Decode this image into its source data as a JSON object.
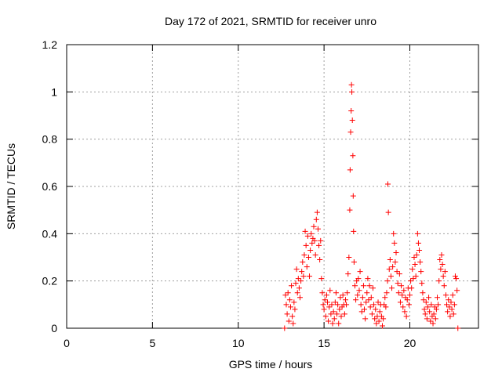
{
  "chart_data": {
    "type": "scatter",
    "title": "Day 172 of 2021, SRMTID for receiver unro",
    "xlabel": "GPS time / hours",
    "ylabel": "SRMTID / TECUs",
    "xlim": [
      0,
      24
    ],
    "ylim": [
      0,
      1.2
    ],
    "xticks": [
      0,
      5,
      10,
      15,
      20
    ],
    "xtick_labels": [
      "0",
      "5",
      "10",
      "15",
      "20"
    ],
    "yticks": [
      0,
      0.2,
      0.4,
      0.6,
      0.8,
      1,
      1.2
    ],
    "ytick_labels": [
      "0",
      "0.2",
      "0.4",
      "0.6",
      "0.8",
      "1",
      "1.2"
    ],
    "grid": true,
    "marker": "+",
    "series_color": "#ff0000",
    "series": [
      {
        "name": "SRMTID",
        "points": [
          [
            12.7,
            0.0
          ],
          [
            12.75,
            0.14
          ],
          [
            12.8,
            0.1
          ],
          [
            12.85,
            0.06
          ],
          [
            12.9,
            0.15
          ],
          [
            12.95,
            0.03
          ],
          [
            13.0,
            0.12
          ],
          [
            13.05,
            0.09
          ],
          [
            13.1,
            0.18
          ],
          [
            13.15,
            0.05
          ],
          [
            13.2,
            0.02
          ],
          [
            13.25,
            0.11
          ],
          [
            13.3,
            0.08
          ],
          [
            13.35,
            0.19
          ],
          [
            13.4,
            0.25
          ],
          [
            13.45,
            0.15
          ],
          [
            13.5,
            0.21
          ],
          [
            13.55,
            0.17
          ],
          [
            13.6,
            0.13
          ],
          [
            13.65,
            0.2
          ],
          [
            13.7,
            0.24
          ],
          [
            13.75,
            0.28
          ],
          [
            13.8,
            0.22
          ],
          [
            13.85,
            0.31
          ],
          [
            13.9,
            0.41
          ],
          [
            13.95,
            0.35
          ],
          [
            14.0,
            0.26
          ],
          [
            14.05,
            0.39
          ],
          [
            14.1,
            0.3
          ],
          [
            14.15,
            0.22
          ],
          [
            14.2,
            0.33
          ],
          [
            14.25,
            0.4
          ],
          [
            14.3,
            0.36
          ],
          [
            14.35,
            0.38
          ],
          [
            14.4,
            0.43
          ],
          [
            14.45,
            0.37
          ],
          [
            14.5,
            0.31
          ],
          [
            14.55,
            0.46
          ],
          [
            14.6,
            0.49
          ],
          [
            14.65,
            0.42
          ],
          [
            14.7,
            0.35
          ],
          [
            14.75,
            0.29
          ],
          [
            14.8,
            0.37
          ],
          [
            14.85,
            0.21
          ],
          [
            14.9,
            0.15
          ],
          [
            14.95,
            0.1
          ],
          [
            15.0,
            0.08
          ],
          [
            15.05,
            0.12
          ],
          [
            15.1,
            0.05
          ],
          [
            15.15,
            0.14
          ],
          [
            15.2,
            0.11
          ],
          [
            15.25,
            0.03
          ],
          [
            15.3,
            0.09
          ],
          [
            15.35,
            0.16
          ],
          [
            15.4,
            0.06
          ],
          [
            15.45,
            0.1
          ],
          [
            15.5,
            0.02
          ],
          [
            15.55,
            0.07
          ],
          [
            15.6,
            0.04
          ],
          [
            15.65,
            0.11
          ],
          [
            15.7,
            0.15
          ],
          [
            15.75,
            0.06
          ],
          [
            15.8,
            0.1
          ],
          [
            15.85,
            0.02
          ],
          [
            15.9,
            0.08
          ],
          [
            15.95,
            0.13
          ],
          [
            16.0,
            0.05
          ],
          [
            16.05,
            0.09
          ],
          [
            16.1,
            0.14
          ],
          [
            16.15,
            0.1
          ],
          [
            16.2,
            0.06
          ],
          [
            16.25,
            0.12
          ],
          [
            16.3,
            0.1
          ],
          [
            16.35,
            0.15
          ],
          [
            16.4,
            0.23
          ],
          [
            16.45,
            0.3
          ],
          [
            16.5,
            0.5
          ],
          [
            16.52,
            0.67
          ],
          [
            16.55,
            0.83
          ],
          [
            16.58,
            0.92
          ],
          [
            16.6,
            1.03
          ],
          [
            16.62,
            1.0
          ],
          [
            16.65,
            0.88
          ],
          [
            16.68,
            0.73
          ],
          [
            16.7,
            0.56
          ],
          [
            16.72,
            0.41
          ],
          [
            16.75,
            0.28
          ],
          [
            16.8,
            0.18
          ],
          [
            16.85,
            0.12
          ],
          [
            16.9,
            0.2
          ],
          [
            16.95,
            0.14
          ],
          [
            17.0,
            0.21
          ],
          [
            17.05,
            0.16
          ],
          [
            17.1,
            0.24
          ],
          [
            17.15,
            0.1
          ],
          [
            17.2,
            0.07
          ],
          [
            17.25,
            0.13
          ],
          [
            17.3,
            0.18
          ],
          [
            17.35,
            0.08
          ],
          [
            17.4,
            0.04
          ],
          [
            17.45,
            0.11
          ],
          [
            17.5,
            0.15
          ],
          [
            17.55,
            0.21
          ],
          [
            17.6,
            0.12
          ],
          [
            17.65,
            0.18
          ],
          [
            17.7,
            0.09
          ],
          [
            17.75,
            0.13
          ],
          [
            17.8,
            0.06
          ],
          [
            17.85,
            0.17
          ],
          [
            17.9,
            0.1
          ],
          [
            17.95,
            0.04
          ],
          [
            18.0,
            0.08
          ],
          [
            18.05,
            0.02
          ],
          [
            18.1,
            0.05
          ],
          [
            18.15,
            0.11
          ],
          [
            18.2,
            0.03
          ],
          [
            18.25,
            0.07
          ],
          [
            18.3,
            0.1
          ],
          [
            18.35,
            0.05
          ],
          [
            18.4,
            0.01
          ],
          [
            18.45,
            0.04
          ],
          [
            18.5,
            0.1
          ],
          [
            18.55,
            0.13
          ],
          [
            18.6,
            0.09
          ],
          [
            18.65,
            0.15
          ],
          [
            18.7,
            0.2
          ],
          [
            18.72,
            0.61
          ],
          [
            18.75,
            0.49
          ],
          [
            18.8,
            0.25
          ],
          [
            18.85,
            0.29
          ],
          [
            18.9,
            0.22
          ],
          [
            18.95,
            0.17
          ],
          [
            19.0,
            0.26
          ],
          [
            19.05,
            0.4
          ],
          [
            19.1,
            0.36
          ],
          [
            19.15,
            0.28
          ],
          [
            19.2,
            0.32
          ],
          [
            19.25,
            0.24
          ],
          [
            19.3,
            0.19
          ],
          [
            19.35,
            0.15
          ],
          [
            19.4,
            0.23
          ],
          [
            19.45,
            0.11
          ],
          [
            19.5,
            0.18
          ],
          [
            19.55,
            0.14
          ],
          [
            19.6,
            0.09
          ],
          [
            19.65,
            0.16
          ],
          [
            19.7,
            0.07
          ],
          [
            19.75,
            0.13
          ],
          [
            19.8,
            0.05
          ],
          [
            19.85,
            0.12
          ],
          [
            19.9,
            0.17
          ],
          [
            19.95,
            0.1
          ],
          [
            20.0,
            0.14
          ],
          [
            20.05,
            0.2
          ],
          [
            20.1,
            0.17
          ],
          [
            20.15,
            0.25
          ],
          [
            20.2,
            0.21
          ],
          [
            20.25,
            0.3
          ],
          [
            20.3,
            0.27
          ],
          [
            20.35,
            0.22
          ],
          [
            20.4,
            0.31
          ],
          [
            20.45,
            0.4
          ],
          [
            20.5,
            0.36
          ],
          [
            20.55,
            0.33
          ],
          [
            20.6,
            0.28
          ],
          [
            20.65,
            0.24
          ],
          [
            20.7,
            0.19
          ],
          [
            20.75,
            0.15
          ],
          [
            20.8,
            0.12
          ],
          [
            20.85,
            0.08
          ],
          [
            20.9,
            0.06
          ],
          [
            20.95,
            0.11
          ],
          [
            21.0,
            0.04
          ],
          [
            21.05,
            0.09
          ],
          [
            21.1,
            0.13
          ],
          [
            21.15,
            0.07
          ],
          [
            21.2,
            0.03
          ],
          [
            21.25,
            0.1
          ],
          [
            21.3,
            0.05
          ],
          [
            21.35,
            0.02
          ],
          [
            21.4,
            0.06
          ],
          [
            21.45,
            0.09
          ],
          [
            21.5,
            0.04
          ],
          [
            21.55,
            0.08
          ],
          [
            21.6,
            0.13
          ],
          [
            21.65,
            0.1
          ],
          [
            21.7,
            0.2
          ],
          [
            21.75,
            0.29
          ],
          [
            21.8,
            0.25
          ],
          [
            21.85,
            0.31
          ],
          [
            21.9,
            0.27
          ],
          [
            21.95,
            0.22
          ],
          [
            22.0,
            0.18
          ],
          [
            22.05,
            0.24
          ],
          [
            22.1,
            0.14
          ],
          [
            22.15,
            0.1
          ],
          [
            22.2,
            0.07
          ],
          [
            22.25,
            0.12
          ],
          [
            22.3,
            0.09
          ],
          [
            22.35,
            0.05
          ],
          [
            22.4,
            0.11
          ],
          [
            22.45,
            0.08
          ],
          [
            22.5,
            0.14
          ],
          [
            22.55,
            0.06
          ],
          [
            22.6,
            0.1
          ],
          [
            22.65,
            0.22
          ],
          [
            22.7,
            0.21
          ],
          [
            22.75,
            0.16
          ],
          [
            22.8,
            0.0
          ]
        ]
      }
    ]
  }
}
